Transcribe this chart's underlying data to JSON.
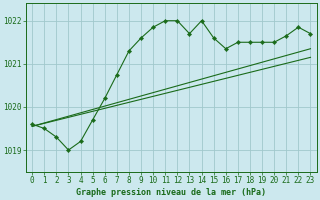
{
  "title": "Graphe pression niveau de la mer (hPa)",
  "background_color": "#cce8ee",
  "line_color": "#1a6b1a",
  "grid_color": "#a0c8cc",
  "xlim": [
    -0.5,
    23.5
  ],
  "ylim": [
    1018.5,
    1022.4
  ],
  "yticks": [
    1019,
    1020,
    1021,
    1022
  ],
  "xticks": [
    0,
    1,
    2,
    3,
    4,
    5,
    6,
    7,
    8,
    9,
    10,
    11,
    12,
    13,
    14,
    15,
    16,
    17,
    18,
    19,
    20,
    21,
    22,
    23
  ],
  "series1_x": [
    0,
    1,
    2,
    3,
    4,
    5,
    6,
    7,
    8,
    9,
    10,
    11,
    12,
    13,
    14,
    15,
    16,
    17,
    18,
    19,
    20,
    21,
    22,
    23
  ],
  "series1_y": [
    1019.6,
    1019.5,
    1019.3,
    1019.0,
    1019.2,
    1019.7,
    1020.2,
    1020.75,
    1021.3,
    1021.6,
    1021.85,
    1022.0,
    1022.0,
    1021.7,
    1022.0,
    1021.6,
    1021.35,
    1021.5,
    1021.5,
    1021.5,
    1021.5,
    1021.65,
    1021.85,
    1021.7
  ],
  "series2_x": [
    0,
    23
  ],
  "series2_y": [
    1019.55,
    1021.35
  ],
  "series3_x": [
    0,
    23
  ],
  "series3_y": [
    1019.55,
    1021.15
  ]
}
